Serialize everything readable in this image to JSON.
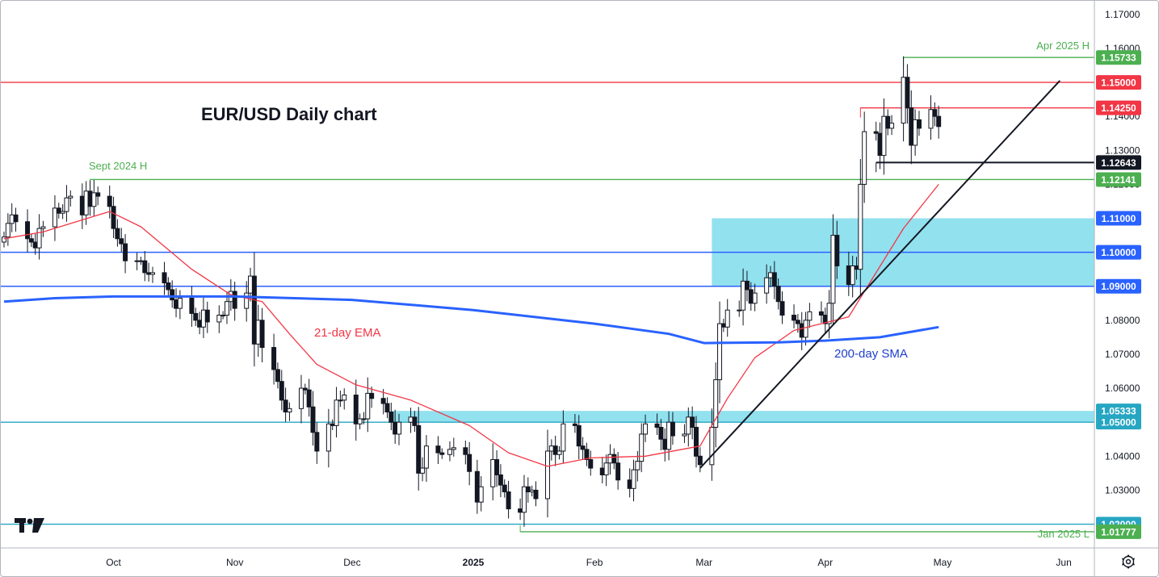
{
  "chart_data": {
    "type": "candlestick",
    "title": "EUR/USD Daily chart",
    "ylim": [
      1.013,
      1.174
    ],
    "y_ticks": [
      "1.17000",
      "1.16000",
      "1.15000",
      "1.14000",
      "1.13000",
      "1.12000",
      "1.11000",
      "1.10000",
      "1.09000",
      "1.08000",
      "1.07000",
      "1.06000",
      "1.05000",
      "1.04000",
      "1.03000",
      "1.02000"
    ],
    "x_ticks": [
      {
        "label": "Oct",
        "date": "2024-10-01",
        "bold": false
      },
      {
        "label": "Nov",
        "date": "2024-11-01",
        "bold": false
      },
      {
        "label": "Dec",
        "date": "2024-12-01",
        "bold": false
      },
      {
        "label": "2025",
        "date": "2025-01-01",
        "bold": true
      },
      {
        "label": "Feb",
        "date": "2025-02-01",
        "bold": false
      },
      {
        "label": "Mar",
        "date": "2025-03-01",
        "bold": false
      },
      {
        "label": "Apr",
        "date": "2025-04-01",
        "bold": false
      },
      {
        "label": "May",
        "date": "2025-05-01",
        "bold": false
      },
      {
        "label": "Jun",
        "date": "2025-06-01",
        "bold": false
      }
    ],
    "x_range": [
      "2024-09-03",
      "2025-06-08"
    ],
    "closes": [
      [
        "2024-09-03",
        1.1045
      ],
      [
        "2024-09-04",
        1.1085
      ],
      [
        "2024-09-05",
        1.111
      ],
      [
        "2024-09-06",
        1.109
      ],
      [
        "2024-09-09",
        1.104
      ],
      [
        "2024-09-10",
        1.103
      ],
      [
        "2024-09-11",
        1.1013
      ],
      [
        "2024-09-12",
        1.107
      ],
      [
        "2024-09-13",
        1.1075
      ],
      [
        "2024-09-16",
        1.113
      ],
      [
        "2024-09-17",
        1.1115
      ],
      [
        "2024-09-18",
        1.112
      ],
      [
        "2024-09-19",
        1.116
      ],
      [
        "2024-09-20",
        1.1165
      ],
      [
        "2024-09-23",
        1.111
      ],
      [
        "2024-09-24",
        1.118
      ],
      [
        "2024-09-25",
        1.1135
      ],
      [
        "2024-09-26",
        1.1175
      ],
      [
        "2024-09-27",
        1.1165
      ],
      [
        "2024-09-30",
        1.1135
      ],
      [
        "2024-10-01",
        1.107
      ],
      [
        "2024-10-02",
        1.104
      ],
      [
        "2024-10-03",
        1.1025
      ],
      [
        "2024-10-04",
        1.0975
      ],
      [
        "2024-10-07",
        1.0975
      ],
      [
        "2024-10-08",
        1.0975
      ],
      [
        "2024-10-09",
        1.094
      ],
      [
        "2024-10-10",
        1.0935
      ],
      [
        "2024-10-11",
        1.094
      ],
      [
        "2024-10-14",
        1.091
      ],
      [
        "2024-10-15",
        1.089
      ],
      [
        "2024-10-16",
        1.086
      ],
      [
        "2024-10-17",
        1.0835
      ],
      [
        "2024-10-18",
        1.0865
      ],
      [
        "2024-10-21",
        1.082
      ],
      [
        "2024-10-22",
        1.08
      ],
      [
        "2024-10-23",
        1.078
      ],
      [
        "2024-10-24",
        1.083
      ],
      [
        "2024-10-25",
        1.0795
      ],
      [
        "2024-10-28",
        1.0815
      ],
      [
        "2024-10-29",
        1.0815
      ],
      [
        "2024-10-30",
        1.0855
      ],
      [
        "2024-10-31",
        1.0885
      ],
      [
        "2024-11-01",
        1.0835
      ],
      [
        "2024-11-04",
        1.088
      ],
      [
        "2024-11-05",
        1.093
      ],
      [
        "2024-11-06",
        1.073
      ],
      [
        "2024-11-07",
        1.08
      ],
      [
        "2024-11-08",
        1.072
      ],
      [
        "2024-11-11",
        1.0655
      ],
      [
        "2024-11-12",
        1.062
      ],
      [
        "2024-11-13",
        1.0565
      ],
      [
        "2024-11-14",
        1.053
      ],
      [
        "2024-11-15",
        1.054
      ],
      [
        "2024-11-18",
        1.06
      ],
      [
        "2024-11-19",
        1.0595
      ],
      [
        "2024-11-20",
        1.0545
      ],
      [
        "2024-11-21",
        1.047
      ],
      [
        "2024-11-22",
        1.0415
      ],
      [
        "2024-11-25",
        1.0495
      ],
      [
        "2024-11-26",
        1.049
      ],
      [
        "2024-11-27",
        1.0565
      ],
      [
        "2024-11-28",
        1.0565
      ],
      [
        "2024-11-29",
        1.058
      ],
      [
        "2024-12-02",
        1.0495
      ],
      [
        "2024-12-03",
        1.051
      ],
      [
        "2024-12-04",
        1.051
      ],
      [
        "2024-12-05",
        1.0585
      ],
      [
        "2024-12-06",
        1.057
      ],
      [
        "2024-12-09",
        1.0555
      ],
      [
        "2024-12-10",
        1.053
      ],
      [
        "2024-12-11",
        1.05
      ],
      [
        "2024-12-12",
        1.0465
      ],
      [
        "2024-12-13",
        1.05
      ],
      [
        "2024-12-16",
        1.0515
      ],
      [
        "2024-12-17",
        1.049
      ],
      [
        "2024-12-18",
        1.035
      ],
      [
        "2024-12-19",
        1.0365
      ],
      [
        "2024-12-20",
        1.043
      ],
      [
        "2024-12-23",
        1.041
      ],
      [
        "2024-12-24",
        1.0405
      ],
      [
        "2024-12-26",
        1.042
      ],
      [
        "2024-12-27",
        1.0425
      ],
      [
        "2024-12-30",
        1.0405
      ],
      [
        "2024-12-31",
        1.0355
      ],
      [
        "2025-01-02",
        1.0265
      ],
      [
        "2025-01-03",
        1.031
      ],
      [
        "2025-01-06",
        1.039
      ],
      [
        "2025-01-07",
        1.0345
      ],
      [
        "2025-01-08",
        1.0315
      ],
      [
        "2025-01-09",
        1.0295
      ],
      [
        "2025-01-10",
        1.0245
      ],
      [
        "2025-01-13",
        1.0235
      ],
      [
        "2025-01-14",
        1.031
      ],
      [
        "2025-01-15",
        1.0295
      ],
      [
        "2025-01-16",
        1.03
      ],
      [
        "2025-01-17",
        1.0275
      ],
      [
        "2025-01-20",
        1.0415
      ],
      [
        "2025-01-21",
        1.043
      ],
      [
        "2025-01-22",
        1.0405
      ],
      [
        "2025-01-23",
        1.0415
      ],
      [
        "2025-01-24",
        1.0495
      ],
      [
        "2025-01-27",
        1.049
      ],
      [
        "2025-01-28",
        1.043
      ],
      [
        "2025-01-29",
        1.042
      ],
      [
        "2025-01-30",
        1.039
      ],
      [
        "2025-01-31",
        1.0365
      ],
      [
        "2025-02-03",
        1.0345
      ],
      [
        "2025-02-04",
        1.038
      ],
      [
        "2025-02-05",
        1.0405
      ],
      [
        "2025-02-06",
        1.038
      ],
      [
        "2025-02-07",
        1.033
      ],
      [
        "2025-02-10",
        1.0305
      ],
      [
        "2025-02-11",
        1.036
      ],
      [
        "2025-02-12",
        1.0385
      ],
      [
        "2025-02-13",
        1.0465
      ],
      [
        "2025-02-14",
        1.0495
      ],
      [
        "2025-02-17",
        1.0485
      ],
      [
        "2025-02-18",
        1.045
      ],
      [
        "2025-02-19",
        1.042
      ],
      [
        "2025-02-20",
        1.05
      ],
      [
        "2025-02-21",
        1.046
      ],
      [
        "2025-02-24",
        1.0465
      ],
      [
        "2025-02-25",
        1.0515
      ],
      [
        "2025-02-26",
        1.0485
      ],
      [
        "2025-02-27",
        1.04
      ],
      [
        "2025-02-28",
        1.0375
      ],
      [
        "2025-03-03",
        1.0485
      ],
      [
        "2025-03-04",
        1.0625
      ],
      [
        "2025-03-05",
        1.079
      ],
      [
        "2025-03-06",
        1.078
      ],
      [
        "2025-03-07",
        1.083
      ],
      [
        "2025-03-10",
        1.083
      ],
      [
        "2025-03-11",
        1.0915
      ],
      [
        "2025-03-12",
        1.089
      ],
      [
        "2025-03-13",
        1.085
      ],
      [
        "2025-03-14",
        1.088
      ],
      [
        "2025-03-17",
        1.0925
      ],
      [
        "2025-03-18",
        1.094
      ],
      [
        "2025-03-19",
        1.09
      ],
      [
        "2025-03-20",
        1.0855
      ],
      [
        "2025-03-21",
        1.0815
      ],
      [
        "2025-03-24",
        1.08
      ],
      [
        "2025-03-25",
        1.079
      ],
      [
        "2025-03-26",
        1.075
      ],
      [
        "2025-03-27",
        1.08
      ],
      [
        "2025-03-28",
        1.0825
      ],
      [
        "2025-03-31",
        1.0815
      ],
      [
        "2025-04-01",
        1.079
      ],
      [
        "2025-04-02",
        1.085
      ],
      [
        "2025-04-03",
        1.105
      ],
      [
        "2025-04-04",
        1.096
      ],
      [
        "2025-04-07",
        1.0905
      ],
      [
        "2025-04-08",
        1.096
      ],
      [
        "2025-04-09",
        1.095
      ],
      [
        "2025-04-10",
        1.12
      ],
      [
        "2025-04-11",
        1.1355
      ],
      [
        "2025-04-14",
        1.135
      ],
      [
        "2025-04-15",
        1.1285
      ],
      [
        "2025-04-16",
        1.14
      ],
      [
        "2025-04-17",
        1.1365
      ],
      [
        "2025-04-18",
        1.138
      ],
      [
        "2025-04-21",
        1.1515
      ],
      [
        "2025-04-22",
        1.1425
      ],
      [
        "2025-04-23",
        1.1315
      ],
      [
        "2025-04-24",
        1.139
      ],
      [
        "2025-04-25",
        1.1365
      ],
      [
        "2025-04-28",
        1.142
      ],
      [
        "2025-04-29",
        1.14
      ],
      [
        "2025-04-30",
        1.137
      ]
    ],
    "series": [
      {
        "name": "21-day EMA",
        "color": "#f23645",
        "points": [
          [
            "2024-09-03",
            1.104
          ],
          [
            "2024-09-13",
            1.106
          ],
          [
            "2024-09-30",
            1.112
          ],
          [
            "2024-10-08",
            1.1075
          ],
          [
            "2024-10-21",
            1.095
          ],
          [
            "2024-10-31",
            1.0875
          ],
          [
            "2024-11-08",
            1.0855
          ],
          [
            "2024-11-15",
            1.076
          ],
          [
            "2024-11-22",
            1.067
          ],
          [
            "2024-12-02",
            1.061
          ],
          [
            "2024-12-16",
            1.0565
          ],
          [
            "2024-12-31",
            1.049
          ],
          [
            "2025-01-10",
            1.041
          ],
          [
            "2025-01-20",
            1.037
          ],
          [
            "2025-01-31",
            1.0395
          ],
          [
            "2025-02-14",
            1.04
          ],
          [
            "2025-02-28",
            1.043
          ],
          [
            "2025-03-07",
            1.057
          ],
          [
            "2025-03-14",
            1.069
          ],
          [
            "2025-03-24",
            1.077
          ],
          [
            "2025-03-31",
            1.079
          ],
          [
            "2025-04-07",
            1.081
          ],
          [
            "2025-04-14",
            1.094
          ],
          [
            "2025-04-21",
            1.107
          ],
          [
            "2025-04-30",
            1.12
          ]
        ]
      },
      {
        "name": "200-day SMA",
        "color": "#2962ff",
        "points": [
          [
            "2024-09-03",
            1.0855
          ],
          [
            "2024-09-16",
            1.0865
          ],
          [
            "2024-10-01",
            1.087
          ],
          [
            "2024-11-01",
            1.087
          ],
          [
            "2024-12-01",
            1.086
          ],
          [
            "2025-01-01",
            1.083
          ],
          [
            "2025-02-01",
            1.079
          ],
          [
            "2025-02-20",
            1.076
          ],
          [
            "2025-03-01",
            1.0733
          ],
          [
            "2025-03-20",
            1.0735
          ],
          [
            "2025-04-01",
            1.074
          ],
          [
            "2025-04-15",
            1.075
          ],
          [
            "2025-04-30",
            1.078
          ]
        ]
      }
    ],
    "horizontal_levels": [
      {
        "value": 1.15,
        "label": "1.15000",
        "color": "#f23645",
        "style": "full"
      },
      {
        "value": 1.1,
        "label": "1.10000",
        "color": "#2962ff",
        "style": "full"
      },
      {
        "value": 1.09,
        "label": "1.09000",
        "color": "#2962ff",
        "style": "full"
      },
      {
        "value": 1.05,
        "label": "1.05000",
        "color": "#26a6c2",
        "style": "full"
      },
      {
        "value": 1.02,
        "label": "1.02000",
        "color": "#26a6c2",
        "style": "full"
      },
      {
        "value": 1.15733,
        "label": "1.15733",
        "color": "#4caf50",
        "style": "from",
        "from": "2025-04-21"
      },
      {
        "value": 1.1425,
        "label": "1.14250",
        "color": "#f23645",
        "style": "from",
        "from": "2025-04-10"
      },
      {
        "value": 1.12643,
        "label": "1.12643",
        "color": "#131722",
        "style": "from",
        "from": "2025-04-14"
      },
      {
        "value": 1.12141,
        "label": "1.12141",
        "color": "#4caf50",
        "style": "from",
        "from": "2024-09-25"
      },
      {
        "value": 1.01777,
        "label": "1.01777",
        "color": "#4caf50",
        "style": "from",
        "from": "2025-01-13"
      }
    ],
    "zones": [
      {
        "y0": 1.09,
        "y1": 1.11,
        "from": "2025-03-03",
        "label_top": "1.11000",
        "color": "#7fdcec"
      },
      {
        "y0": 1.05,
        "y1": 1.05333,
        "from": "2024-12-11",
        "label_top": "1.05333",
        "color": "#7fdcec"
      }
    ],
    "trendline": {
      "from": [
        "2025-02-28",
        1.0365
      ],
      "to": [
        "2025-05-31",
        1.1505
      ]
    },
    "annotations": [
      {
        "text": "Apr 2025 H",
        "color": "#4caf50"
      },
      {
        "text": "Sept 2024 H",
        "color": "#4caf50"
      },
      {
        "text": "Jan 2025 L",
        "color": "#4caf50"
      },
      {
        "text": "21-day EMA",
        "color": "#f23645"
      },
      {
        "text": "200-day SMA",
        "color": "#1e3fcc"
      }
    ]
  }
}
